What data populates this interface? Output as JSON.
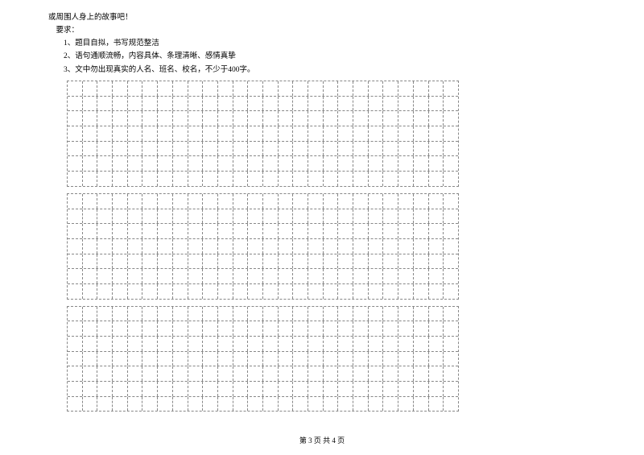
{
  "intro": {
    "line1": "或周围人身上的故事吧！",
    "heading": "要求：",
    "req1": "1、题目自拟，书写规范整洁",
    "req2": "2、语句通顺流畅，内容具体、条理清晰、感情真挚",
    "req3": "3、文中勿出现真实的人名、班名、校名，不少于400字。"
  },
  "grid": {
    "cols": 26,
    "sections": [
      7,
      7,
      7
    ],
    "border_color": "#888888",
    "cell_size": 17.7
  },
  "footer": {
    "text": "第 3 页 共 4 页"
  }
}
